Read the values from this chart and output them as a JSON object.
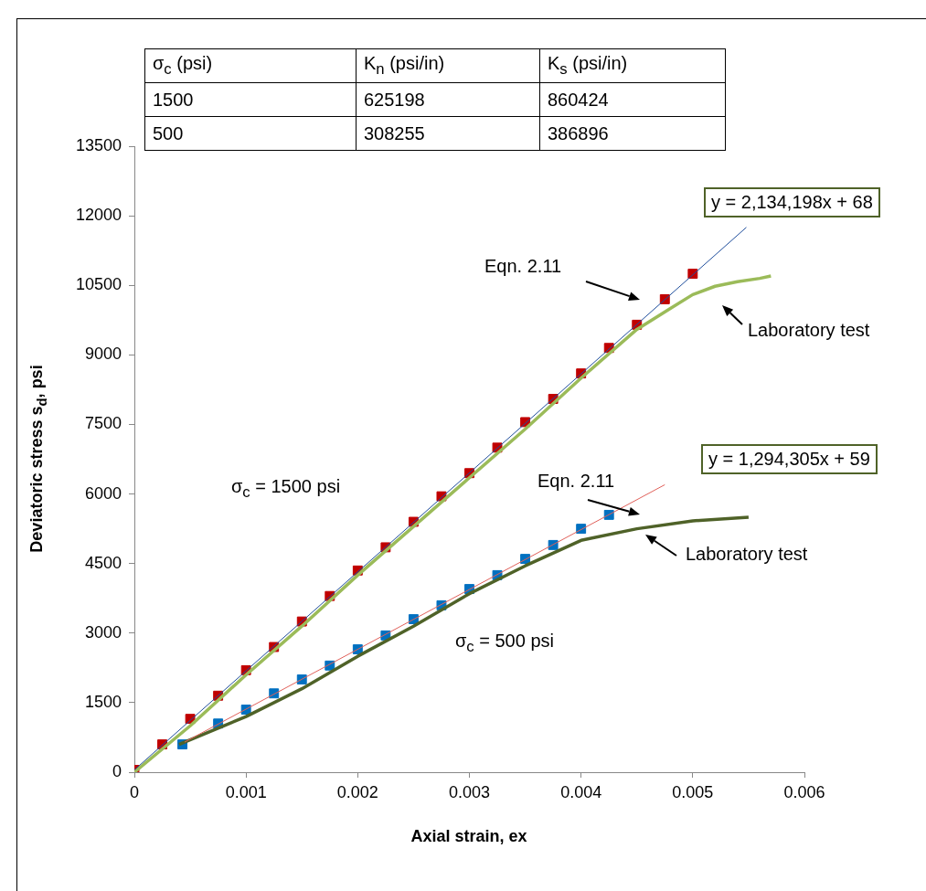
{
  "chart_data": {
    "type": "line",
    "xlabel": "Axial strain, ex",
    "ylabel": "Deviatoric stress s$_{d}$, psi",
    "xlim": [
      0,
      0.006
    ],
    "xticks": [
      0,
      0.001,
      0.002,
      0.003,
      0.004,
      0.005,
      0.006
    ],
    "ylim": [
      0,
      13500
    ],
    "yticks": [
      0,
      1500,
      3000,
      4500,
      6000,
      7500,
      9000,
      10500,
      12000,
      13500
    ],
    "grid": false,
    "legend": false,
    "series": [
      {
        "type": "scatter",
        "marker": "square",
        "color": "#c00000",
        "x": [
          0,
          0.00025,
          0.0005,
          0.00075,
          0.001,
          0.00125,
          0.0015,
          0.00175,
          0.002,
          0.00225,
          0.0025,
          0.00275,
          0.003,
          0.00325,
          0.0035,
          0.00375,
          0.004,
          0.00425,
          0.0045,
          0.00475,
          0.005
        ],
        "values": [
          50,
          600,
          1150,
          1650,
          2200,
          2700,
          3250,
          3800,
          4350,
          4850,
          5400,
          5950,
          6450,
          7000,
          7550,
          8050,
          8600,
          9150,
          9650,
          10200,
          10750
        ]
      },
      {
        "type": "scatter",
        "marker": "square",
        "color": "#0070c0",
        "x": [
          0.00043,
          0.00075,
          0.001,
          0.00125,
          0.0015,
          0.00175,
          0.002,
          0.00225,
          0.0025,
          0.00275,
          0.003,
          0.00325,
          0.0035,
          0.00375,
          0.004,
          0.00425
        ],
        "values": [
          600,
          1050,
          1350,
          1700,
          2000,
          2300,
          2650,
          2950,
          3300,
          3600,
          3950,
          4250,
          4600,
          4900,
          5250,
          5550
        ]
      },
      {
        "type": "line",
        "marker": "none",
        "color": "#9bbb59",
        "x": [
          0,
          0.0005,
          0.001,
          0.0015,
          0.002,
          0.0025,
          0.003,
          0.0035,
          0.004,
          0.0045,
          0.0048,
          0.005,
          0.0052,
          0.0054,
          0.0056,
          0.0057
        ],
        "values": [
          0,
          1000,
          2100,
          3150,
          4250,
          5300,
          6350,
          7400,
          8500,
          9550,
          10000,
          10300,
          10480,
          10580,
          10650,
          10700
        ]
      },
      {
        "type": "line",
        "marker": "none",
        "color": "#4f6228",
        "x": [
          0.0004,
          0.001,
          0.0015,
          0.002,
          0.0025,
          0.003,
          0.0035,
          0.004,
          0.0045,
          0.005,
          0.0055
        ],
        "values": [
          600,
          1200,
          1800,
          2500,
          3150,
          3850,
          4450,
          5000,
          5250,
          5420,
          5500
        ]
      },
      {
        "type": "line",
        "marker": "none",
        "color": "#1f4e9c",
        "x": [
          0,
          0.00548
        ],
        "values": [
          50,
          11750
        ]
      },
      {
        "type": "line",
        "marker": "none",
        "color": "#e0605a",
        "x": [
          0.00045,
          0.00475
        ],
        "values": [
          650,
          6200
        ]
      }
    ],
    "annotations": [
      "σ$_{c}$ (psi)",
      "K$_{n}$ (psi/in)",
      "K$_{s}$ (psi/in)",
      "1500",
      "625198",
      "860424",
      "500",
      "308255",
      "386896",
      "Eqn. 2.11",
      "Laboratory test",
      "σ$_{c}$ = 1500 psi",
      "Eqn. 2.11",
      "Laboratory test",
      "σ$_{c}$ = 500 psi",
      "y = 2,134,198x + 68",
      "y = 1,294,305x + 59"
    ]
  }
}
